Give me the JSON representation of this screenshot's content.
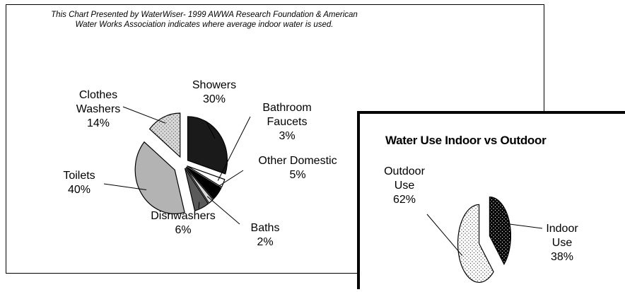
{
  "chart_data": [
    {
      "type": "pie",
      "title": "This Chart Presented by WaterWiser- 1999 AWWA Research Foundation & American Water Works Association indicates where average indoor water is used.",
      "title_lines": [
        "This Chart Presented by WaterWiser- 1999 AWWA Research Foundation & American",
        "Water Works Association indicates where average indoor water is used."
      ],
      "slices": [
        {
          "label_lines": [
            "Showers"
          ],
          "pct_label": "30%",
          "value": 30,
          "fill": "#1a1a1a"
        },
        {
          "label_lines": [
            "Bathroom",
            "Faucets"
          ],
          "pct_label": "3%",
          "value": 3,
          "fill": "#ffffff"
        },
        {
          "label_lines": [
            "Other Domestic"
          ],
          "pct_label": "5%",
          "value": 5,
          "fill": "#000000"
        },
        {
          "label_lines": [
            "Baths"
          ],
          "pct_label": "2%",
          "value": 2,
          "fill": "#d9d9d9"
        },
        {
          "label_lines": [
            "Dishwashers"
          ],
          "pct_label": "6%",
          "value": 6,
          "fill": "#5a5a5a"
        },
        {
          "label_lines": [
            "Toilets"
          ],
          "pct_label": "40%",
          "value": 40,
          "fill": "#b3b3b3"
        },
        {
          "label_lines": [
            "Clothes",
            "Washers"
          ],
          "pct_label": "14%",
          "value": 14,
          "fill": "#d6d6d6"
        }
      ]
    },
    {
      "type": "pie",
      "title": "Water Use Indoor vs Outdoor",
      "slices": [
        {
          "label_lines": [
            "Indoor",
            "Use"
          ],
          "pct_label": "38%",
          "value": 38,
          "fill": "#000000"
        },
        {
          "label_lines": [
            "Outdoor",
            "Use"
          ],
          "pct_label": "62%",
          "value": 62,
          "fill": "#ffffff"
        }
      ]
    }
  ]
}
